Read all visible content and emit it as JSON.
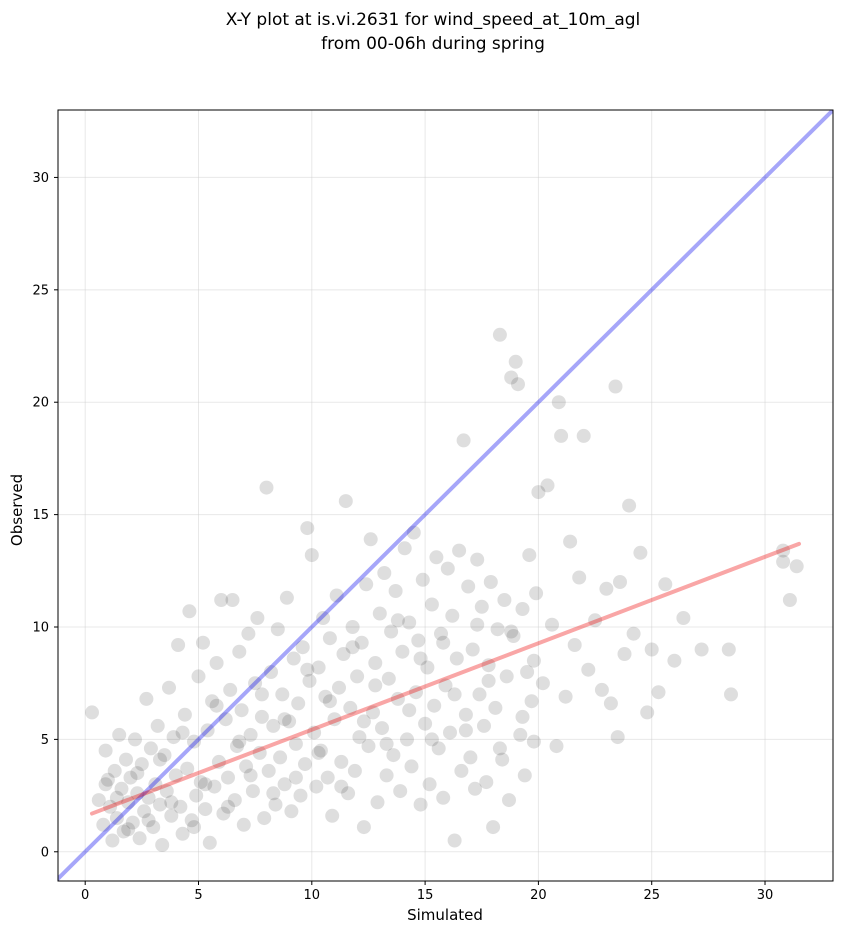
{
  "chart_data": {
    "type": "scatter",
    "title": "X-Y plot at is.vi.2631 for wind_speed_at_10m_agl",
    "subtitle": "from 00-06h during spring",
    "xlabel": "Simulated",
    "ylabel": "Observed",
    "xlim": [
      -1.2,
      33
    ],
    "ylim": [
      -1.3,
      33
    ],
    "x_ticks": [
      0,
      5,
      10,
      15,
      20,
      25,
      30
    ],
    "y_ticks": [
      0,
      5,
      10,
      15,
      20,
      25,
      30
    ],
    "x_tick_labels": [
      "0",
      "5",
      "10",
      "15",
      "20",
      "25",
      "30"
    ],
    "y_tick_labels": [
      "0",
      "5",
      "10",
      "15",
      "20",
      "25",
      "30"
    ],
    "grid": true,
    "lines": [
      {
        "kind": "one-to-one",
        "x": [
          -1.2,
          33
        ],
        "y": [
          -1.2,
          33
        ],
        "color": "#0000ee"
      },
      {
        "kind": "regression",
        "x": [
          0.3,
          31.5
        ],
        "y": [
          1.7,
          13.7
        ],
        "color": "#ee0000"
      }
    ],
    "point_color": "#000000",
    "series": [
      {
        "values": [
          [
            0.3,
            6.2
          ],
          [
            0.6,
            2.3
          ],
          [
            0.8,
            1.2
          ],
          [
            0.9,
            4.5
          ],
          [
            1.0,
            3.2
          ],
          [
            1.1,
            2.0
          ],
          [
            1.2,
            0.5
          ],
          [
            1.3,
            3.6
          ],
          [
            1.4,
            1.5
          ],
          [
            1.5,
            5.2
          ],
          [
            1.6,
            2.8
          ],
          [
            1.7,
            0.9
          ],
          [
            1.8,
            4.1
          ],
          [
            1.9,
            2.2
          ],
          [
            2.0,
            3.3
          ],
          [
            2.1,
            1.3
          ],
          [
            2.2,
            5.0
          ],
          [
            2.3,
            2.6
          ],
          [
            2.4,
            0.6
          ],
          [
            2.5,
            3.9
          ],
          [
            2.6,
            1.8
          ],
          [
            2.7,
            6.8
          ],
          [
            2.8,
            2.4
          ],
          [
            2.9,
            4.6
          ],
          [
            3.0,
            1.1
          ],
          [
            3.1,
            3.0
          ],
          [
            3.2,
            5.6
          ],
          [
            3.3,
            2.1
          ],
          [
            3.4,
            0.3
          ],
          [
            3.5,
            4.3
          ],
          [
            3.6,
            2.7
          ],
          [
            3.7,
            7.3
          ],
          [
            3.8,
            1.6
          ],
          [
            3.9,
            5.1
          ],
          [
            4.0,
            3.4
          ],
          [
            4.1,
            9.2
          ],
          [
            4.2,
            2.0
          ],
          [
            4.3,
            0.8
          ],
          [
            4.4,
            6.1
          ],
          [
            4.5,
            3.7
          ],
          [
            4.6,
            10.7
          ],
          [
            4.7,
            1.4
          ],
          [
            4.8,
            4.9
          ],
          [
            4.9,
            2.5
          ],
          [
            5.0,
            7.8
          ],
          [
            5.1,
            3.1
          ],
          [
            5.2,
            9.3
          ],
          [
            5.3,
            1.9
          ],
          [
            5.4,
            5.4
          ],
          [
            5.5,
            0.4
          ],
          [
            5.6,
            6.7
          ],
          [
            5.7,
            2.9
          ],
          [
            5.8,
            8.4
          ],
          [
            5.9,
            4.0
          ],
          [
            6.0,
            11.2
          ],
          [
            6.1,
            1.7
          ],
          [
            6.2,
            5.9
          ],
          [
            6.3,
            3.3
          ],
          [
            6.4,
            7.2
          ],
          [
            6.5,
            11.2
          ],
          [
            6.6,
            2.3
          ],
          [
            6.7,
            4.7
          ],
          [
            6.8,
            8.9
          ],
          [
            6.9,
            6.3
          ],
          [
            7.0,
            1.2
          ],
          [
            7.1,
            3.8
          ],
          [
            7.2,
            9.7
          ],
          [
            7.3,
            5.2
          ],
          [
            7.4,
            2.7
          ],
          [
            7.5,
            7.5
          ],
          [
            7.6,
            10.4
          ],
          [
            7.7,
            4.4
          ],
          [
            7.8,
            6.0
          ],
          [
            7.9,
            1.5
          ],
          [
            8.0,
            16.2
          ],
          [
            8.1,
            3.6
          ],
          [
            8.2,
            8.0
          ],
          [
            8.3,
            5.6
          ],
          [
            8.4,
            2.1
          ],
          [
            8.5,
            9.9
          ],
          [
            8.6,
            4.2
          ],
          [
            8.7,
            7.0
          ],
          [
            8.8,
            3.0
          ],
          [
            8.9,
            11.3
          ],
          [
            9.0,
            5.8
          ],
          [
            9.1,
            1.8
          ],
          [
            9.2,
            8.6
          ],
          [
            9.3,
            4.8
          ],
          [
            9.4,
            6.6
          ],
          [
            9.5,
            2.5
          ],
          [
            9.6,
            9.1
          ],
          [
            9.7,
            3.9
          ],
          [
            9.8,
            14.4
          ],
          [
            9.9,
            7.6
          ],
          [
            10.0,
            13.2
          ],
          [
            10.1,
            5.3
          ],
          [
            10.2,
            2.9
          ],
          [
            10.3,
            8.2
          ],
          [
            10.4,
            4.5
          ],
          [
            10.5,
            10.4
          ],
          [
            10.6,
            6.9
          ],
          [
            10.7,
            3.3
          ],
          [
            10.8,
            9.5
          ],
          [
            10.9,
            1.6
          ],
          [
            11.0,
            5.9
          ],
          [
            11.1,
            11.4
          ],
          [
            11.2,
            7.3
          ],
          [
            11.3,
            4.0
          ],
          [
            11.4,
            8.8
          ],
          [
            11.5,
            15.6
          ],
          [
            11.6,
            2.6
          ],
          [
            11.7,
            6.4
          ],
          [
            11.8,
            10.0
          ],
          [
            11.9,
            3.6
          ],
          [
            12.0,
            7.8
          ],
          [
            12.1,
            5.1
          ],
          [
            12.2,
            9.3
          ],
          [
            12.3,
            1.1
          ],
          [
            12.4,
            11.9
          ],
          [
            12.5,
            4.7
          ],
          [
            12.6,
            13.9
          ],
          [
            12.7,
            6.2
          ],
          [
            12.8,
            8.4
          ],
          [
            12.9,
            2.2
          ],
          [
            13.0,
            10.6
          ],
          [
            13.1,
            5.5
          ],
          [
            13.2,
            12.4
          ],
          [
            13.3,
            3.4
          ],
          [
            13.4,
            7.7
          ],
          [
            13.5,
            9.8
          ],
          [
            13.6,
            4.3
          ],
          [
            13.7,
            11.6
          ],
          [
            13.8,
            6.8
          ],
          [
            13.9,
            2.7
          ],
          [
            14.0,
            8.9
          ],
          [
            14.1,
            13.5
          ],
          [
            14.2,
            5.0
          ],
          [
            14.3,
            10.2
          ],
          [
            14.4,
            3.8
          ],
          [
            14.5,
            14.2
          ],
          [
            14.6,
            7.1
          ],
          [
            14.7,
            9.4
          ],
          [
            14.8,
            2.1
          ],
          [
            14.9,
            12.1
          ],
          [
            15.0,
            5.7
          ],
          [
            15.1,
            8.2
          ],
          [
            15.2,
            3.0
          ],
          [
            15.3,
            11.0
          ],
          [
            15.4,
            6.5
          ],
          [
            15.5,
            13.1
          ],
          [
            15.6,
            4.6
          ],
          [
            15.7,
            9.7
          ],
          [
            15.8,
            2.4
          ],
          [
            15.9,
            7.4
          ],
          [
            16.0,
            12.6
          ],
          [
            16.1,
            5.3
          ],
          [
            16.2,
            10.5
          ],
          [
            16.3,
            0.5
          ],
          [
            16.4,
            8.6
          ],
          [
            16.5,
            13.4
          ],
          [
            16.6,
            3.6
          ],
          [
            16.7,
            18.3
          ],
          [
            16.8,
            6.1
          ],
          [
            16.9,
            11.8
          ],
          [
            17.0,
            4.2
          ],
          [
            17.1,
            9.0
          ],
          [
            17.2,
            2.8
          ],
          [
            17.3,
            13.0
          ],
          [
            17.4,
            7.0
          ],
          [
            17.5,
            10.9
          ],
          [
            17.6,
            5.6
          ],
          [
            17.7,
            3.1
          ],
          [
            17.8,
            8.3
          ],
          [
            17.9,
            12.0
          ],
          [
            18.0,
            1.1
          ],
          [
            18.1,
            6.4
          ],
          [
            18.2,
            9.9
          ],
          [
            18.3,
            23.0
          ],
          [
            18.4,
            4.1
          ],
          [
            18.5,
            11.2
          ],
          [
            18.6,
            7.8
          ],
          [
            18.7,
            2.3
          ],
          [
            18.8,
            21.1
          ],
          [
            18.9,
            9.6
          ],
          [
            19.0,
            21.8
          ],
          [
            19.1,
            20.8
          ],
          [
            19.2,
            5.2
          ],
          [
            19.3,
            10.8
          ],
          [
            19.4,
            3.4
          ],
          [
            19.5,
            8.0
          ],
          [
            19.6,
            13.2
          ],
          [
            19.7,
            6.7
          ],
          [
            19.8,
            4.9
          ],
          [
            19.9,
            11.5
          ],
          [
            20.0,
            16.0
          ],
          [
            20.2,
            7.5
          ],
          [
            20.4,
            16.3
          ],
          [
            20.6,
            10.1
          ],
          [
            20.8,
            4.7
          ],
          [
            20.9,
            20.0
          ],
          [
            21.0,
            18.5
          ],
          [
            21.2,
            6.9
          ],
          [
            21.4,
            13.8
          ],
          [
            21.6,
            9.2
          ],
          [
            21.8,
            12.2
          ],
          [
            22.0,
            18.5
          ],
          [
            22.2,
            8.1
          ],
          [
            22.5,
            10.3
          ],
          [
            22.8,
            7.2
          ],
          [
            23.0,
            11.7
          ],
          [
            23.2,
            6.6
          ],
          [
            23.4,
            20.7
          ],
          [
            23.5,
            5.1
          ],
          [
            23.6,
            12.0
          ],
          [
            23.8,
            8.8
          ],
          [
            24.0,
            15.4
          ],
          [
            24.2,
            9.7
          ],
          [
            24.5,
            13.3
          ],
          [
            24.8,
            6.2
          ],
          [
            25.0,
            9.0
          ],
          [
            25.3,
            7.1
          ],
          [
            25.6,
            11.9
          ],
          [
            26.0,
            8.5
          ],
          [
            26.4,
            10.4
          ],
          [
            27.2,
            9.0
          ],
          [
            28.4,
            9.0
          ],
          [
            28.5,
            7.0
          ],
          [
            30.8,
            13.4
          ],
          [
            31.1,
            11.2
          ],
          [
            31.4,
            12.7
          ],
          [
            30.8,
            12.9
          ],
          [
            0.9,
            3.0
          ],
          [
            1.4,
            2.4
          ],
          [
            1.9,
            1.0
          ],
          [
            2.3,
            3.5
          ],
          [
            2.8,
            1.4
          ],
          [
            3.3,
            4.1
          ],
          [
            3.8,
            2.2
          ],
          [
            4.3,
            5.3
          ],
          [
            4.8,
            1.1
          ],
          [
            5.3,
            3.0
          ],
          [
            5.8,
            6.5
          ],
          [
            6.3,
            2.0
          ],
          [
            6.8,
            4.9
          ],
          [
            7.3,
            3.4
          ],
          [
            7.8,
            7.0
          ],
          [
            8.3,
            2.6
          ],
          [
            8.8,
            5.9
          ],
          [
            9.3,
            3.3
          ],
          [
            9.8,
            8.1
          ],
          [
            10.3,
            4.4
          ],
          [
            10.8,
            6.7
          ],
          [
            11.3,
            2.9
          ],
          [
            11.8,
            9.1
          ],
          [
            12.3,
            5.8
          ],
          [
            12.8,
            7.4
          ],
          [
            13.3,
            4.8
          ],
          [
            13.8,
            10.3
          ],
          [
            14.3,
            6.3
          ],
          [
            14.8,
            8.6
          ],
          [
            15.3,
            5.0
          ],
          [
            15.8,
            9.3
          ],
          [
            16.3,
            7.0
          ],
          [
            16.8,
            5.4
          ],
          [
            17.3,
            10.1
          ],
          [
            17.8,
            7.6
          ],
          [
            18.3,
            4.6
          ],
          [
            18.8,
            9.8
          ],
          [
            19.3,
            6.0
          ],
          [
            19.8,
            8.5
          ]
        ]
      }
    ]
  }
}
